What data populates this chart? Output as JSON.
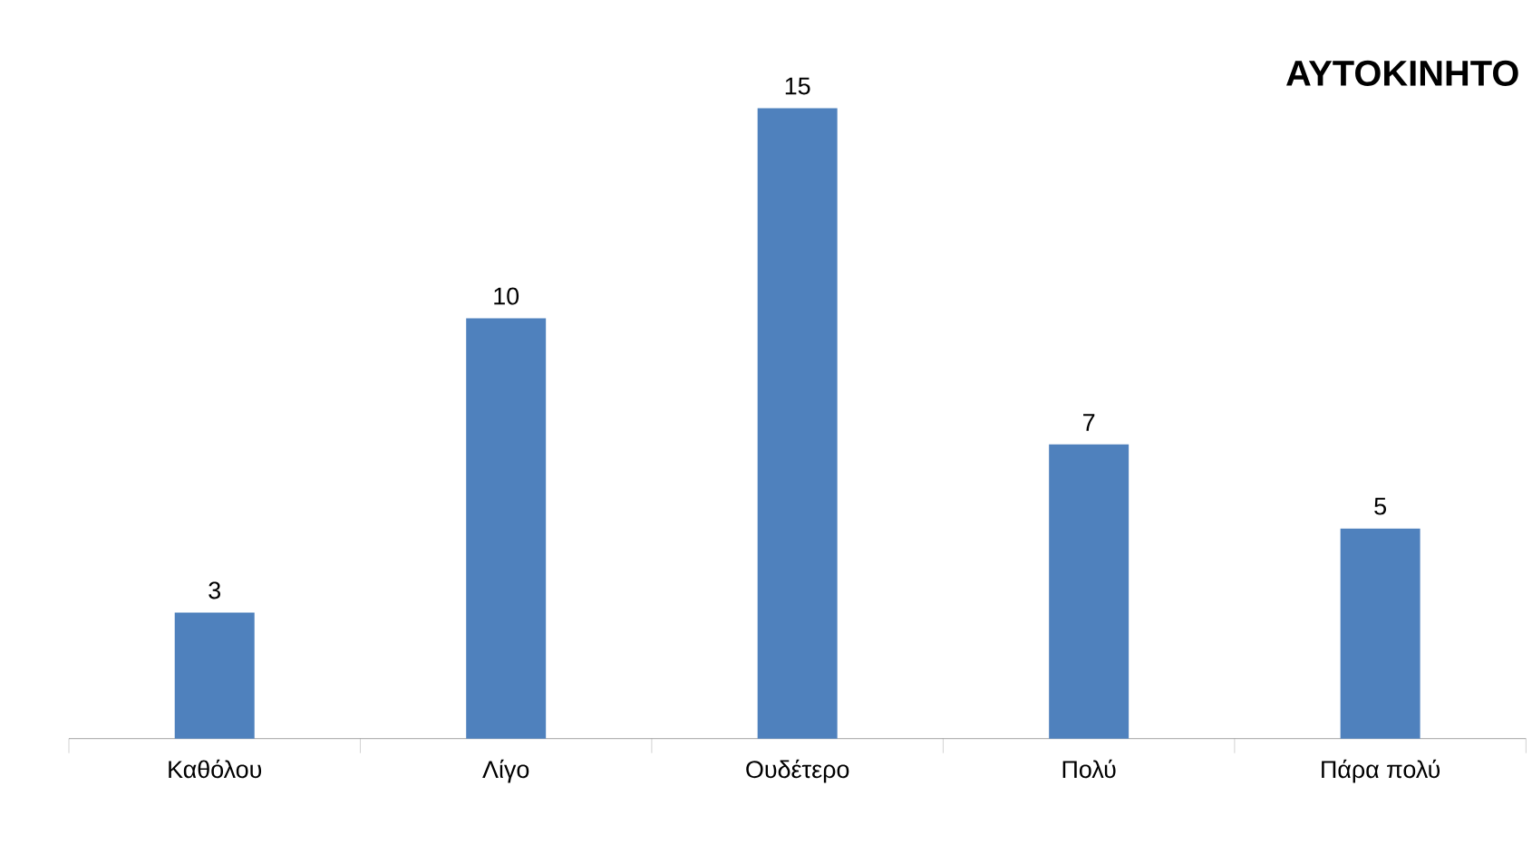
{
  "chart_data": {
    "type": "bar",
    "title": "ΑΥΤΟΚΙΝΗΤΟ",
    "categories": [
      "Καθόλου",
      "Λίγο",
      "Ουδέτερο",
      "Πολύ",
      "Πάρα πολύ"
    ],
    "values": [
      3,
      10,
      15,
      7,
      5
    ],
    "color": "#4f81bd",
    "data_labels": true
  }
}
